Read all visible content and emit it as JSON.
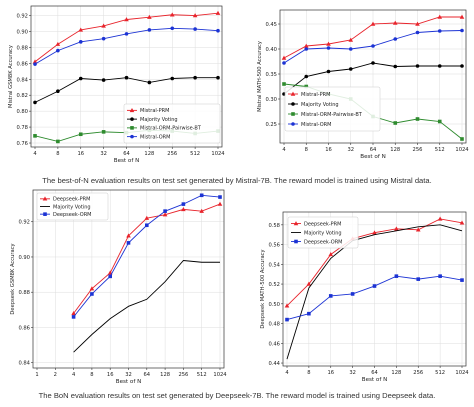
{
  "captions": {
    "top": "The best-of-N evaluation results on test set generated by Mistral-7B. The reward model is trained using Mistral data.",
    "bottom": "The BoN evaluation results on test set generated by Deepseek-7B. The reward model is trained using Deepseek data."
  },
  "chart_data": [
    {
      "type": "line",
      "title": "",
      "xlabel": "Best of N",
      "ylabel": "Mistral GSM8K Accuracy",
      "x": [
        4,
        8,
        16,
        32,
        64,
        128,
        256,
        512,
        1024
      ],
      "xticks": [
        "4",
        "8",
        "16",
        "32",
        "64",
        "128",
        "256",
        "512",
        "1024"
      ],
      "ylim": [
        0.755,
        0.932
      ],
      "yticks": [
        0.76,
        0.78,
        0.8,
        0.82,
        0.84,
        0.86,
        0.88,
        0.9,
        0.92
      ],
      "ytick_labels": [
        "0.76",
        "0.78",
        "0.80",
        "0.82",
        "0.84",
        "0.86",
        "0.88",
        "0.90",
        "0.92"
      ],
      "grid": true,
      "legend_position": "bottom-right",
      "series": [
        {
          "name": "Mistral-PRM",
          "color": "#e8242c",
          "marker": "triangle",
          "values": [
            0.862,
            0.884,
            0.902,
            0.907,
            0.915,
            0.918,
            0.921,
            0.92,
            0.923
          ]
        },
        {
          "name": "Majority Voting",
          "color": "#000000",
          "marker": "circle",
          "values": [
            0.811,
            0.825,
            0.841,
            0.839,
            0.842,
            0.836,
            0.841,
            0.842,
            0.842
          ]
        },
        {
          "name": "Mistral-ORM-Pairwise-BT",
          "color": "#2e8b2e",
          "marker": "square",
          "values": [
            0.769,
            0.762,
            0.771,
            0.774,
            0.773,
            0.776,
            0.775,
            0.772,
            0.775
          ]
        },
        {
          "name": "Mistral-ORM",
          "color": "#1c33d4",
          "marker": "circle",
          "values": [
            0.859,
            0.876,
            0.887,
            0.891,
            0.897,
            0.902,
            0.904,
            0.903,
            0.901
          ]
        }
      ]
    },
    {
      "type": "line",
      "title": "",
      "xlabel": "Best of N",
      "ylabel": "Mistral MATH-500 Accuracy",
      "x": [
        4,
        8,
        16,
        32,
        64,
        128,
        256,
        512,
        1024
      ],
      "xticks": [
        "4",
        "8",
        "16",
        "32",
        "64",
        "128",
        "256",
        "512",
        "1024"
      ],
      "ylim": [
        0.212,
        0.478
      ],
      "yticks": [
        0.25,
        0.3,
        0.35,
        0.4,
        0.45
      ],
      "ytick_labels": [
        "0.25",
        "0.30",
        "0.35",
        "0.40",
        "0.45"
      ],
      "grid": true,
      "legend_position": "bottom-left",
      "series": [
        {
          "name": "Mistral-PRM",
          "color": "#e8242c",
          "marker": "triangle",
          "values": [
            0.382,
            0.406,
            0.41,
            0.418,
            0.45,
            0.452,
            0.45,
            0.464,
            0.464
          ]
        },
        {
          "name": "Majority Voting",
          "color": "#000000",
          "marker": "circle",
          "values": [
            0.31,
            0.345,
            0.355,
            0.36,
            0.372,
            0.365,
            0.366,
            0.366,
            0.366
          ]
        },
        {
          "name": "Mistral-ORM-Pairwise-BT",
          "color": "#2e8b2e",
          "marker": "square",
          "values": [
            0.33,
            0.325,
            0.31,
            0.3,
            0.265,
            0.252,
            0.26,
            0.255,
            0.22
          ]
        },
        {
          "name": "Mistral-ORM",
          "color": "#1c33d4",
          "marker": "circle",
          "values": [
            0.372,
            0.4,
            0.402,
            0.4,
            0.406,
            0.42,
            0.433,
            0.436,
            0.437
          ]
        }
      ]
    },
    {
      "type": "line",
      "title": "",
      "xlabel": "Best of N",
      "ylabel": "Deepseek GSM8K Accuracy",
      "x": [
        4,
        8,
        16,
        32,
        64,
        128,
        256,
        512,
        1024
      ],
      "xticks": [
        "1",
        "2",
        "4",
        "8",
        "16",
        "32",
        "64",
        "128",
        "256",
        "512",
        "1024"
      ],
      "xtick_values": [
        1,
        2,
        4,
        8,
        16,
        32,
        64,
        128,
        256,
        512,
        1024
      ],
      "ylim": [
        0.837,
        0.938
      ],
      "yticks": [
        0.84,
        0.86,
        0.88,
        0.9,
        0.92
      ],
      "ytick_labels": [
        "0.84",
        "0.86",
        "0.88",
        "0.90",
        "0.92"
      ],
      "grid": true,
      "legend_position": "top-left",
      "series": [
        {
          "name": "Deepseek-PRM",
          "color": "#e8242c",
          "marker": "triangle",
          "values": [
            0.868,
            0.882,
            0.891,
            0.912,
            0.922,
            0.924,
            0.927,
            0.926,
            0.93
          ]
        },
        {
          "name": "Majority Voting",
          "color": "#000000",
          "marker": "none",
          "values": [
            0.846,
            0.856,
            0.865,
            0.872,
            0.876,
            0.886,
            0.898,
            0.897,
            0.897
          ]
        },
        {
          "name": "Deepseek-ORM",
          "color": "#1c33d4",
          "marker": "square",
          "values": [
            0.866,
            0.879,
            0.889,
            0.908,
            0.918,
            0.926,
            0.93,
            0.935,
            0.934
          ]
        }
      ]
    },
    {
      "type": "line",
      "title": "",
      "xlabel": "Best of N",
      "ylabel": "Deepseek MATH-500 Accuracy",
      "x": [
        4,
        8,
        16,
        32,
        64,
        128,
        256,
        512,
        1024
      ],
      "xticks": [
        "4",
        "8",
        "16",
        "32",
        "64",
        "128",
        "256",
        "512",
        "1024"
      ],
      "ylim": [
        0.437,
        0.593
      ],
      "yticks": [
        0.44,
        0.46,
        0.48,
        0.5,
        0.52,
        0.54,
        0.56,
        0.58
      ],
      "ytick_labels": [
        "0.44",
        "0.46",
        "0.48",
        "0.50",
        "0.52",
        "0.54",
        "0.56",
        "0.58"
      ],
      "grid": true,
      "legend_position": "top-left",
      "series": [
        {
          "name": "Deepseek-PRM",
          "color": "#e8242c",
          "marker": "triangle",
          "values": [
            0.498,
            0.52,
            0.55,
            0.566,
            0.572,
            0.576,
            0.575,
            0.586,
            0.582
          ]
        },
        {
          "name": "Majority Voting",
          "color": "#000000",
          "marker": "none",
          "values": [
            0.444,
            0.516,
            0.546,
            0.564,
            0.57,
            0.574,
            0.578,
            0.58,
            0.574
          ]
        },
        {
          "name": "Deepseek-ORM",
          "color": "#1c33d4",
          "marker": "square",
          "values": [
            0.484,
            0.49,
            0.508,
            0.51,
            0.518,
            0.528,
            0.525,
            0.528,
            0.524
          ]
        }
      ]
    }
  ]
}
